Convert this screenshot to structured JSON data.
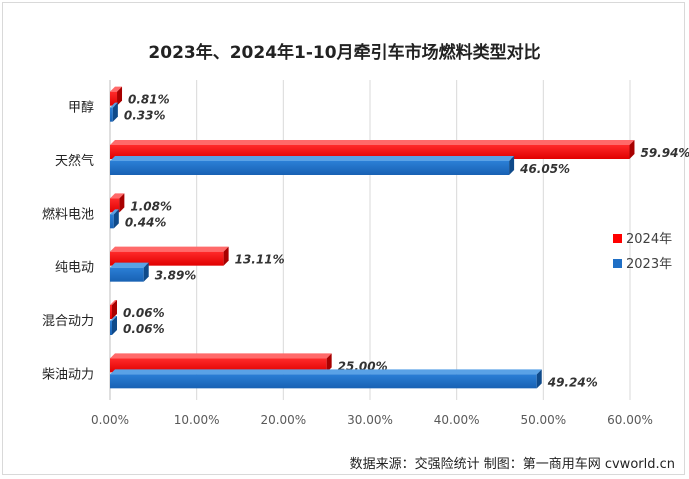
{
  "chart_data": {
    "type": "bar",
    "orientation": "horizontal",
    "title": "2023年、2024年1-10月牵引车市场燃料类型对比",
    "categories": [
      "甲醇",
      "天然气",
      "燃料电池",
      "纯电动",
      "混合动力",
      "柴油动力"
    ],
    "series": [
      {
        "name": "2024年",
        "color": "#ff0000",
        "values": [
          0.81,
          59.94,
          1.08,
          13.11,
          0.06,
          25.0
        ],
        "labels": [
          "0.81%",
          "59.94%",
          "1.08%",
          "13.11%",
          "0.06%",
          "25.00%"
        ]
      },
      {
        "name": "2023年",
        "color": "#1f6fc5",
        "values": [
          0.33,
          46.05,
          0.44,
          3.89,
          0.06,
          49.24
        ],
        "labels": [
          "0.33%",
          "46.05%",
          "0.44%",
          "3.89%",
          "0.06%",
          "49.24%"
        ]
      }
    ],
    "xlim": [
      0,
      60
    ],
    "ticks": [
      0,
      10,
      20,
      30,
      40,
      50,
      60
    ],
    "tick_labels": [
      "0.00%",
      "10.00%",
      "20.00%",
      "30.00%",
      "40.00%",
      "50.00%",
      "60.00%"
    ],
    "grid": true,
    "legend": "right"
  },
  "source_text": "数据来源：交强险统计   制图：第一商用车网 cvworld.cn"
}
